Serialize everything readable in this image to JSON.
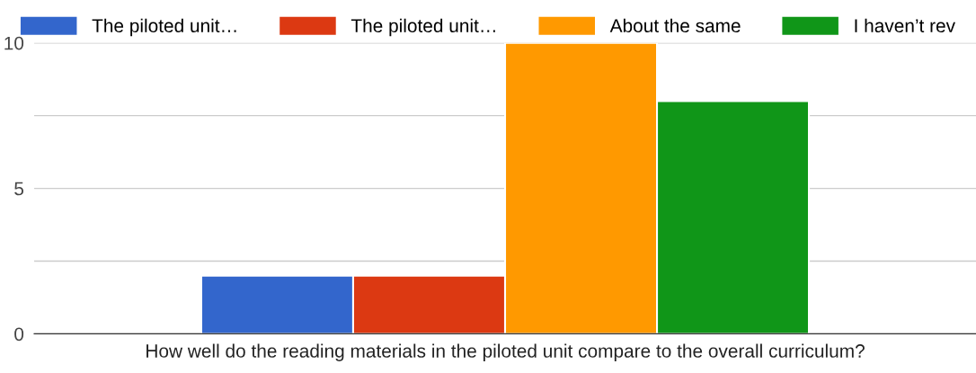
{
  "chart_data": {
    "type": "bar",
    "categories": [
      "How well do the reading materials in the piloted unit compare to the overall curriculum?"
    ],
    "series": [
      {
        "name": "The piloted unit…",
        "color": "#3366cc",
        "values": [
          2
        ]
      },
      {
        "name": "The piloted unit…",
        "color": "#dc3912",
        "values": [
          2
        ]
      },
      {
        "name": "About the same",
        "color": "#ff9900",
        "values": [
          10
        ]
      },
      {
        "name": "I haven’t rev",
        "color": "#109618",
        "values": [
          8
        ]
      }
    ],
    "ylim": [
      0,
      10
    ],
    "yticks": [
      0,
      {
        "value": 2.5,
        "label": null
      },
      5,
      {
        "value": 7.5,
        "label": null
      },
      10
    ],
    "grid": "y",
    "legend": "top"
  }
}
